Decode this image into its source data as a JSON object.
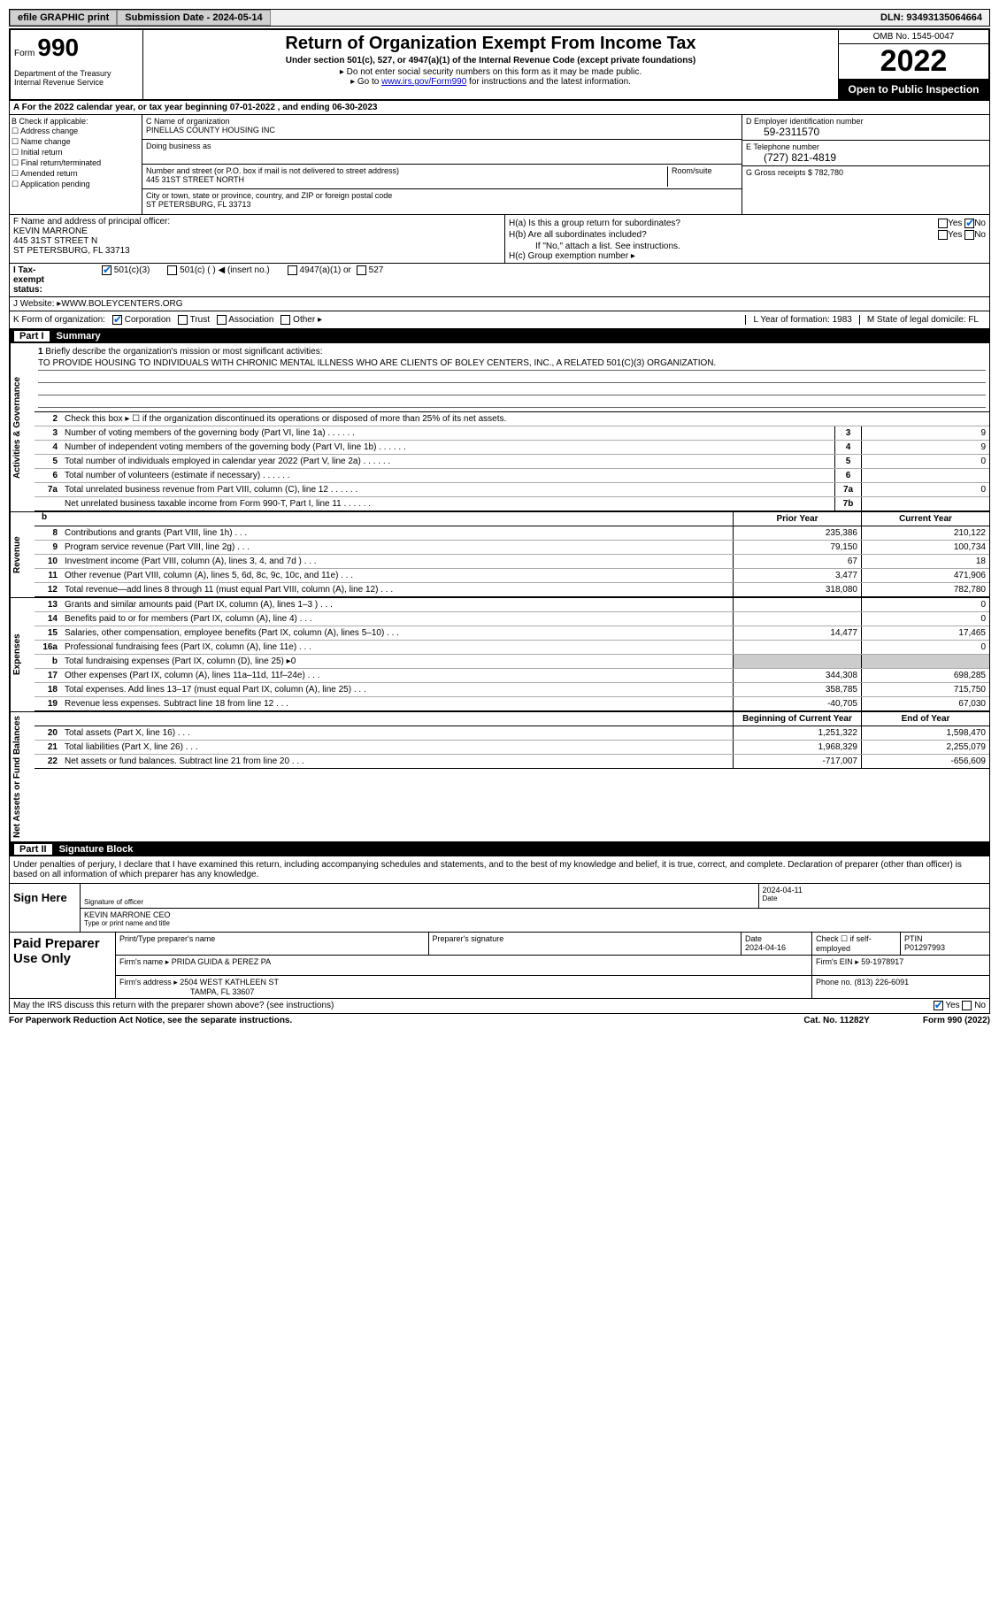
{
  "top": {
    "efile": "efile GRAPHIC print",
    "sub_date_label": "Submission Date - ",
    "sub_date": "2024-05-14",
    "dln_label": "DLN: ",
    "dln": "93493135064664"
  },
  "header": {
    "form_word": "Form",
    "form_num": "990",
    "dept": "Department of the Treasury\nInternal Revenue Service",
    "title": "Return of Organization Exempt From Income Tax",
    "sub1": "Under section 501(c), 527, or 4947(a)(1) of the Internal Revenue Code (except private foundations)",
    "sub2": "▸ Do not enter social security numbers on this form as it may be made public.",
    "sub3_pre": "▸ Go to ",
    "sub3_link": "www.irs.gov/Form990",
    "sub3_post": " for instructions and the latest information.",
    "omb": "OMB No. 1545-0047",
    "year": "2022",
    "open": "Open to Public Inspection"
  },
  "row_a": {
    "label": "A For the 2022 calendar year, or tax year beginning ",
    "begin": "07-01-2022",
    "mid": " , and ending ",
    "end": "06-30-2023"
  },
  "col_b": {
    "label": "B Check if applicable:",
    "opts": [
      "Address change",
      "Name change",
      "Initial return",
      "Final return/terminated",
      "Amended return",
      "Application pending"
    ]
  },
  "col_c": {
    "name_label": "C Name of organization",
    "name": "PINELLAS COUNTY HOUSING INC",
    "dba_label": "Doing business as",
    "addr_label": "Number and street (or P.O. box if mail is not delivered to street address)",
    "addr": "445 31ST STREET NORTH",
    "room_label": "Room/suite",
    "city_label": "City or town, state or province, country, and ZIP or foreign postal code",
    "city": "ST PETERSBURG, FL  33713"
  },
  "col_d": {
    "ein_label": "D Employer identification number",
    "ein": "59-2311570",
    "tel_label": "E Telephone number",
    "tel": "(727) 821-4819",
    "gross_label": "G Gross receipts $ ",
    "gross": "782,780"
  },
  "col_f": {
    "label": "F Name and address of principal officer:",
    "name": "KEVIN MARRONE",
    "addr1": "445 31ST STREET N",
    "addr2": "ST PETERSBURG, FL  33713"
  },
  "col_h": {
    "ha": "H(a) Is this a group return for subordinates?",
    "ha_no": "No",
    "hb": "H(b) Are all subordinates included?",
    "hb_note": "If \"No,\" attach a list. See instructions.",
    "hc": "H(c) Group exemption number ▸"
  },
  "row_i": {
    "label": "I Tax-exempt status:",
    "opts": [
      "501(c)(3)",
      "501(c) (  ) ◀ (insert no.)",
      "4947(a)(1) or",
      "527"
    ]
  },
  "row_j": {
    "label": "J Website: ▸ ",
    "val": "WWW.BOLEYCENTERS.ORG"
  },
  "row_k": {
    "label": "K Form of organization:",
    "opts": [
      "Corporation",
      "Trust",
      "Association",
      "Other ▸"
    ],
    "l": "L Year of formation: ",
    "l_val": "1983",
    "m": "M State of legal domicile: ",
    "m_val": "FL"
  },
  "part1": {
    "num": "Part I",
    "title": "Summary"
  },
  "mission": {
    "num": "1",
    "label": "Briefly describe the organization's mission or most significant activities:",
    "text": "TO PROVIDE HOUSING TO INDIVIDUALS WITH CHRONIC MENTAL ILLNESS WHO ARE CLIENTS OF BOLEY CENTERS, INC., A RELATED 501(C)(3) ORGANIZATION."
  },
  "gov_lines": [
    {
      "n": "2",
      "t": "Check this box ▸ ☐ if the organization discontinued its operations or disposed of more than 25% of its net assets."
    },
    {
      "n": "3",
      "t": "Number of voting members of the governing body (Part VI, line 1a)",
      "box": "3",
      "v": "9"
    },
    {
      "n": "4",
      "t": "Number of independent voting members of the governing body (Part VI, line 1b)",
      "box": "4",
      "v": "9"
    },
    {
      "n": "5",
      "t": "Total number of individuals employed in calendar year 2022 (Part V, line 2a)",
      "box": "5",
      "v": "0"
    },
    {
      "n": "6",
      "t": "Total number of volunteers (estimate if necessary)",
      "box": "6",
      "v": ""
    },
    {
      "n": "7a",
      "t": "Total unrelated business revenue from Part VIII, column (C), line 12",
      "box": "7a",
      "v": "0"
    },
    {
      "n": "",
      "t": "Net unrelated business taxable income from Form 990-T, Part I, line 11",
      "box": "7b",
      "v": ""
    }
  ],
  "rev_hdr": {
    "prior": "Prior Year",
    "current": "Current Year"
  },
  "rev_lines": [
    {
      "n": "8",
      "t": "Contributions and grants (Part VIII, line 1h)",
      "p": "235,386",
      "c": "210,122"
    },
    {
      "n": "9",
      "t": "Program service revenue (Part VIII, line 2g)",
      "p": "79,150",
      "c": "100,734"
    },
    {
      "n": "10",
      "t": "Investment income (Part VIII, column (A), lines 3, 4, and 7d )",
      "p": "67",
      "c": "18"
    },
    {
      "n": "11",
      "t": "Other revenue (Part VIII, column (A), lines 5, 6d, 8c, 9c, 10c, and 11e)",
      "p": "3,477",
      "c": "471,906"
    },
    {
      "n": "12",
      "t": "Total revenue—add lines 8 through 11 (must equal Part VIII, column (A), line 12)",
      "p": "318,080",
      "c": "782,780"
    }
  ],
  "exp_lines": [
    {
      "n": "13",
      "t": "Grants and similar amounts paid (Part IX, column (A), lines 1–3 )",
      "p": "",
      "c": "0"
    },
    {
      "n": "14",
      "t": "Benefits paid to or for members (Part IX, column (A), line 4)",
      "p": "",
      "c": "0"
    },
    {
      "n": "15",
      "t": "Salaries, other compensation, employee benefits (Part IX, column (A), lines 5–10)",
      "p": "14,477",
      "c": "17,465"
    },
    {
      "n": "16a",
      "t": "Professional fundraising fees (Part IX, column (A), line 11e)",
      "p": "",
      "c": "0"
    },
    {
      "n": "b",
      "t": "Total fundraising expenses (Part IX, column (D), line 25) ▸0",
      "shade": true
    },
    {
      "n": "17",
      "t": "Other expenses (Part IX, column (A), lines 11a–11d, 11f–24e)",
      "p": "344,308",
      "c": "698,285"
    },
    {
      "n": "18",
      "t": "Total expenses. Add lines 13–17 (must equal Part IX, column (A), line 25)",
      "p": "358,785",
      "c": "715,750"
    },
    {
      "n": "19",
      "t": "Revenue less expenses. Subtract line 18 from line 12",
      "p": "-40,705",
      "c": "67,030"
    }
  ],
  "net_hdr": {
    "begin": "Beginning of Current Year",
    "end": "End of Year"
  },
  "net_lines": [
    {
      "n": "20",
      "t": "Total assets (Part X, line 16)",
      "p": "1,251,322",
      "c": "1,598,470"
    },
    {
      "n": "21",
      "t": "Total liabilities (Part X, line 26)",
      "p": "1,968,329",
      "c": "2,255,079"
    },
    {
      "n": "22",
      "t": "Net assets or fund balances. Subtract line 21 from line 20",
      "p": "-717,007",
      "c": "-656,609"
    }
  ],
  "side_labels": {
    "gov": "Activities & Governance",
    "rev": "Revenue",
    "exp": "Expenses",
    "net": "Net Assets or Fund Balances"
  },
  "part2": {
    "num": "Part II",
    "title": "Signature Block",
    "intro": "Under penalties of perjury, I declare that I have examined this return, including accompanying schedules and statements, and to the best of my knowledge and belief, it is true, correct, and complete. Declaration of preparer (other than officer) is based on all information of which preparer has any knowledge."
  },
  "sign": {
    "here": "Sign Here",
    "sig_label": "Signature of officer",
    "date": "2024-04-11",
    "date_label": "Date",
    "name": "KEVIN MARRONE CEO",
    "name_label": "Type or print name and title"
  },
  "prep": {
    "title": "Paid Preparer Use Only",
    "name_label": "Print/Type preparer's name",
    "sig_label": "Preparer's signature",
    "date_label": "Date",
    "date": "2024-04-16",
    "check_label": "Check ☐ if self-employed",
    "ptin_label": "PTIN",
    "ptin": "P01297993",
    "firm_label": "Firm's name ▸ ",
    "firm": "PRIDA GUIDA & PEREZ PA",
    "ein_label": "Firm's EIN ▸ ",
    "ein": "59-1978917",
    "addr_label": "Firm's address ▸ ",
    "addr1": "2504 WEST KATHLEEN ST",
    "addr2": "TAMPA, FL  33607",
    "phone_label": "Phone no. ",
    "phone": "(813) 226-6091"
  },
  "discuss": {
    "text": "May the IRS discuss this return with the preparer shown above? (see instructions)",
    "yes": "Yes",
    "no": "No"
  },
  "footer": {
    "left": "For Paperwork Reduction Act Notice, see the separate instructions.",
    "mid": "Cat. No. 11282Y",
    "right": "Form 990 (2022)"
  }
}
